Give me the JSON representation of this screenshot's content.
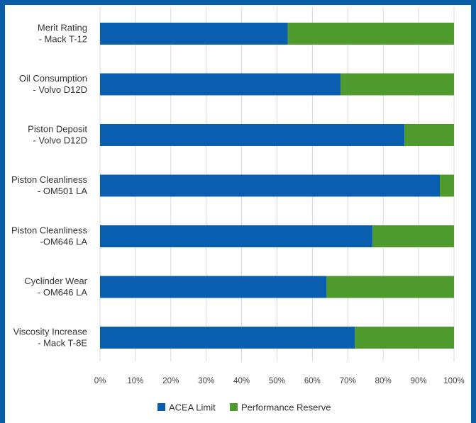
{
  "chart_data": {
    "type": "bar",
    "orientation": "horizontal",
    "stacked": true,
    "categories": [
      [
        "Merit Rating",
        "- Mack T-12"
      ],
      [
        "Oil Consumption",
        "- Volvo D12D"
      ],
      [
        "Piston Deposit",
        "- Volvo D12D"
      ],
      [
        "Piston Cleanliness",
        "- OM501 LA"
      ],
      [
        "Piston Cleanliness",
        "-OM646 LA"
      ],
      [
        "Cyclinder Wear",
        "- OM646 LA"
      ],
      [
        "Viscosity Increase",
        "- Mack T-8E"
      ]
    ],
    "series": [
      {
        "name": "ACEA Limit",
        "color": "#0a5eb0",
        "values": [
          53,
          68,
          86,
          96,
          77,
          64,
          72
        ]
      },
      {
        "name": "Performance Reserve",
        "color": "#4e9a2c",
        "values": [
          47,
          32,
          14,
          4,
          23,
          36,
          28
        ]
      }
    ],
    "xlim": [
      0,
      100
    ],
    "xticks": [
      "0%",
      "10%",
      "20%",
      "30%",
      "40%",
      "50%",
      "60%",
      "70%",
      "80%",
      "90%",
      "100%"
    ],
    "grid": "vertical",
    "legend": "bottom"
  }
}
